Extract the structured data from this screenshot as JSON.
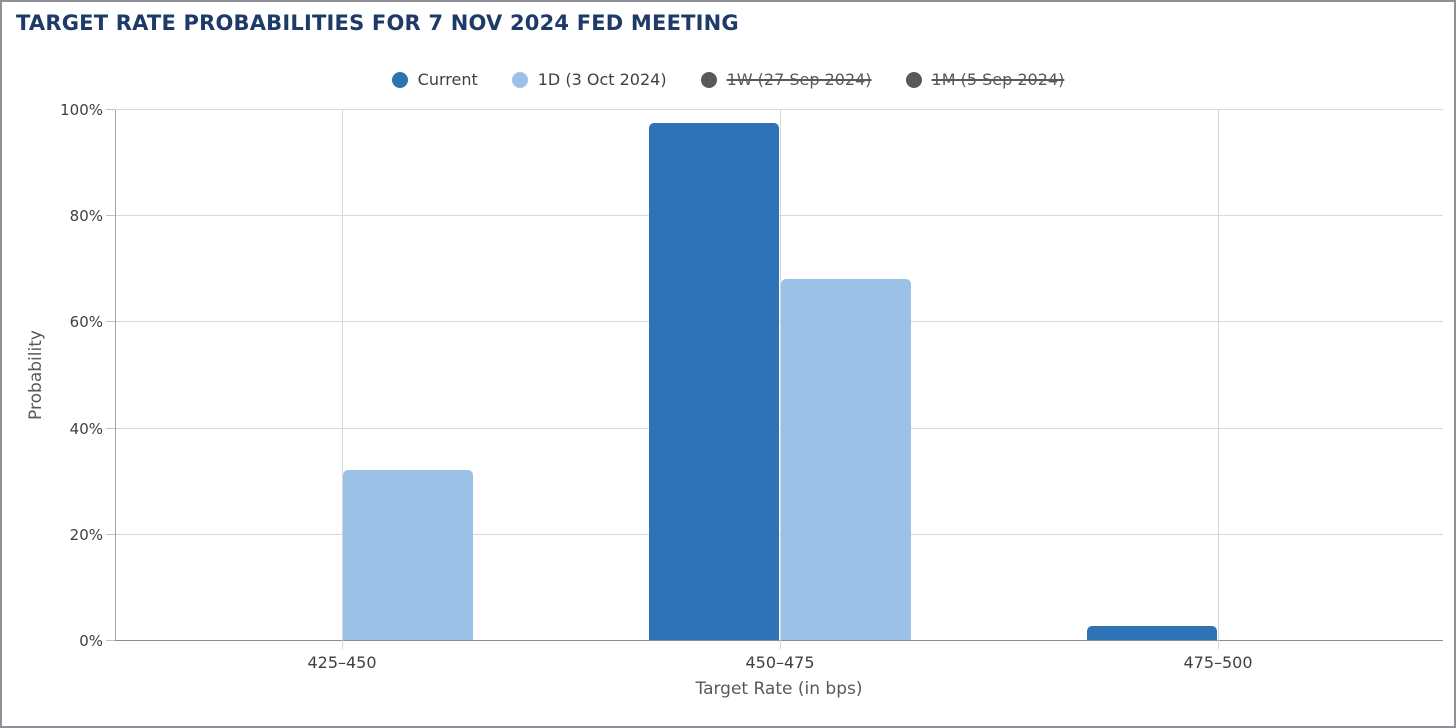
{
  "page": {
    "background": "#ffffff",
    "frame_border_color": "#8f9093"
  },
  "header": {
    "title": "TARGET RATE PROBABILITIES FOR 7 NOV 2024 FED MEETING",
    "title_color": "#1e3a68"
  },
  "legend": {
    "position": "top-center",
    "active_text_color": "#404040",
    "disabled_text_color": "#595959",
    "items": [
      {
        "label": "Current",
        "color": "#2e73b5",
        "disabled": false
      },
      {
        "label": "1D (3 Oct 2024)",
        "color": "#9bc2e6",
        "disabled": false
      },
      {
        "label": "1W (27 Sep 2024)",
        "color": "#595959",
        "disabled": true
      },
      {
        "label": "1M (5 Sep 2024)",
        "color": "#595959",
        "disabled": true
      }
    ]
  },
  "chart_data": {
    "type": "bar",
    "title": "TARGET RATE PROBABILITIES FOR 7 NOV 2024 FED MEETING",
    "categories": [
      "425–450",
      "450–475",
      "475–500"
    ],
    "series": [
      {
        "name": "Current",
        "color": "#2e73b5",
        "visible": true,
        "values": [
          0,
          97.4,
          2.6
        ]
      },
      {
        "name": "1D (3 Oct 2024)",
        "color": "#9bc2e6",
        "visible": true,
        "values": [
          32.1,
          67.9,
          0
        ]
      },
      {
        "name": "1W (27 Sep 2024)",
        "color": "#595959",
        "visible": false,
        "values": []
      },
      {
        "name": "1M (5 Sep 2024)",
        "color": "#595959",
        "visible": false,
        "values": []
      }
    ],
    "xlabel": "Target Rate (in bps)",
    "ylabel": "Probability",
    "ylim": [
      0,
      100
    ],
    "ytick_step": 20,
    "ytick_labels": [
      "0%",
      "20%",
      "40%",
      "60%",
      "80%",
      "100%"
    ],
    "grid": true,
    "legend_position": "top",
    "colors": {
      "gridline": "#d9d9d9",
      "y_axis_line": "#a6a6a6",
      "x_axis_line": "#8c8c8c",
      "tick_label": "#404040",
      "axis_title": "#595959"
    }
  }
}
